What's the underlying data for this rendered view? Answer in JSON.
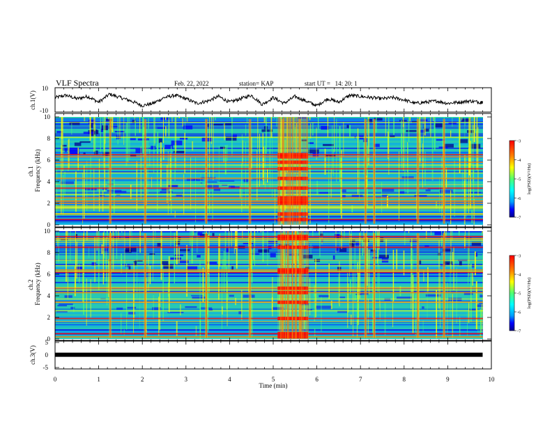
{
  "header": {
    "title": "VLF Spectra",
    "date": "Feb. 22, 2022",
    "station": "station= KAP",
    "start": "start UT =   14: 20: 1"
  },
  "colors": {
    "background": "#ffffff",
    "axes": "#000000",
    "spectrogram_base": "#27c8b4",
    "colormap": [
      "#00008f",
      "#0000ff",
      "#00a0ff",
      "#00ffff",
      "#50ff70",
      "#ffff00",
      "#ff8000",
      "#ff0000"
    ]
  },
  "colorbar": {
    "label": "log(PSD)(V²/Hz)",
    "ticks": [
      "-3",
      "-4",
      "-5",
      "-6",
      "-7"
    ]
  },
  "chart_data": [
    {
      "type": "line",
      "ylabel": "ch.1(V)",
      "ylim": [
        -10,
        10
      ],
      "yticks": [
        "10",
        "-10"
      ],
      "x": [
        0,
        0.25,
        0.5,
        0.75,
        1.0,
        1.25,
        1.5,
        1.75,
        2.0,
        2.25,
        2.5,
        2.75,
        3.0,
        3.25,
        3.5,
        3.75,
        4.0,
        4.25,
        4.5,
        4.75,
        5.0,
        5.25,
        5.5,
        5.75,
        6.0,
        6.25,
        6.5,
        6.75,
        7.0,
        7.25,
        7.5,
        7.75,
        8.0,
        8.25,
        8.5,
        8.75,
        9.0,
        9.25,
        9.5,
        9.75,
        9.8
      ],
      "y": [
        2,
        4,
        1,
        3,
        -2,
        5,
        2,
        -1,
        -5,
        -3,
        2,
        4,
        1,
        -3,
        -1,
        3,
        -2,
        1,
        4,
        -4,
        2,
        -3,
        3,
        -1,
        -5,
        1,
        -2,
        4,
        3,
        2,
        1,
        2,
        0,
        -3,
        -2,
        -1,
        -3,
        -2,
        -1,
        -2,
        -2
      ]
    },
    {
      "type": "heatmap",
      "ylabel": "ch.1\nFrequency (kHz)",
      "ylim": [
        0,
        10
      ],
      "yticks": [
        "10",
        "8",
        "6",
        "4",
        "2",
        "0"
      ],
      "zrange": [
        -7,
        -3
      ],
      "colorbar_label": "log(PSD)(V²/Hz)",
      "bright_bands_khz": [
        0.5,
        1.0,
        2.0,
        2.2,
        2.5,
        3.4,
        4.3,
        5.2,
        5.8,
        6.3,
        6.5
      ],
      "vertical_bursts_min": [
        1.25,
        2.05,
        3.45,
        4.45,
        5.2,
        5.6,
        7.1,
        7.3,
        8.3,
        8.9
      ],
      "burst_interval_min": [
        5.1,
        5.8
      ]
    },
    {
      "type": "heatmap",
      "ylabel": "ch.2\nFrequency (kHz)",
      "ylim": [
        0,
        10
      ],
      "yticks": [
        "10",
        "8",
        "6",
        "4",
        "2",
        "0"
      ],
      "zrange": [
        -7,
        -3
      ],
      "colorbar_label": "log(PSD)(V²/Hz)",
      "bright_bands_khz": [
        0.2,
        0.5,
        1.9,
        3.4,
        4.3,
        4.7,
        6.2,
        6.4,
        8.5,
        9.3,
        9.5
      ],
      "vertical_bursts_min": [
        1.25,
        2.05,
        3.45,
        4.45,
        5.2,
        5.6,
        7.1,
        7.3,
        8.3,
        8.9
      ],
      "burst_interval_min": [
        5.1,
        5.8
      ]
    },
    {
      "type": "line",
      "ylabel": "ch.3(V)",
      "ylim": [
        -5,
        5
      ],
      "yticks": [
        "5",
        "0",
        "-5"
      ],
      "xlabel": "Time (min)",
      "xlim": [
        0,
        10
      ],
      "xticks": [
        "0",
        "1",
        "2",
        "3",
        "4",
        "5",
        "6",
        "7",
        "8",
        "9",
        "10"
      ],
      "x": [
        0,
        9.8
      ],
      "y": [
        0.1,
        0.1
      ]
    }
  ]
}
